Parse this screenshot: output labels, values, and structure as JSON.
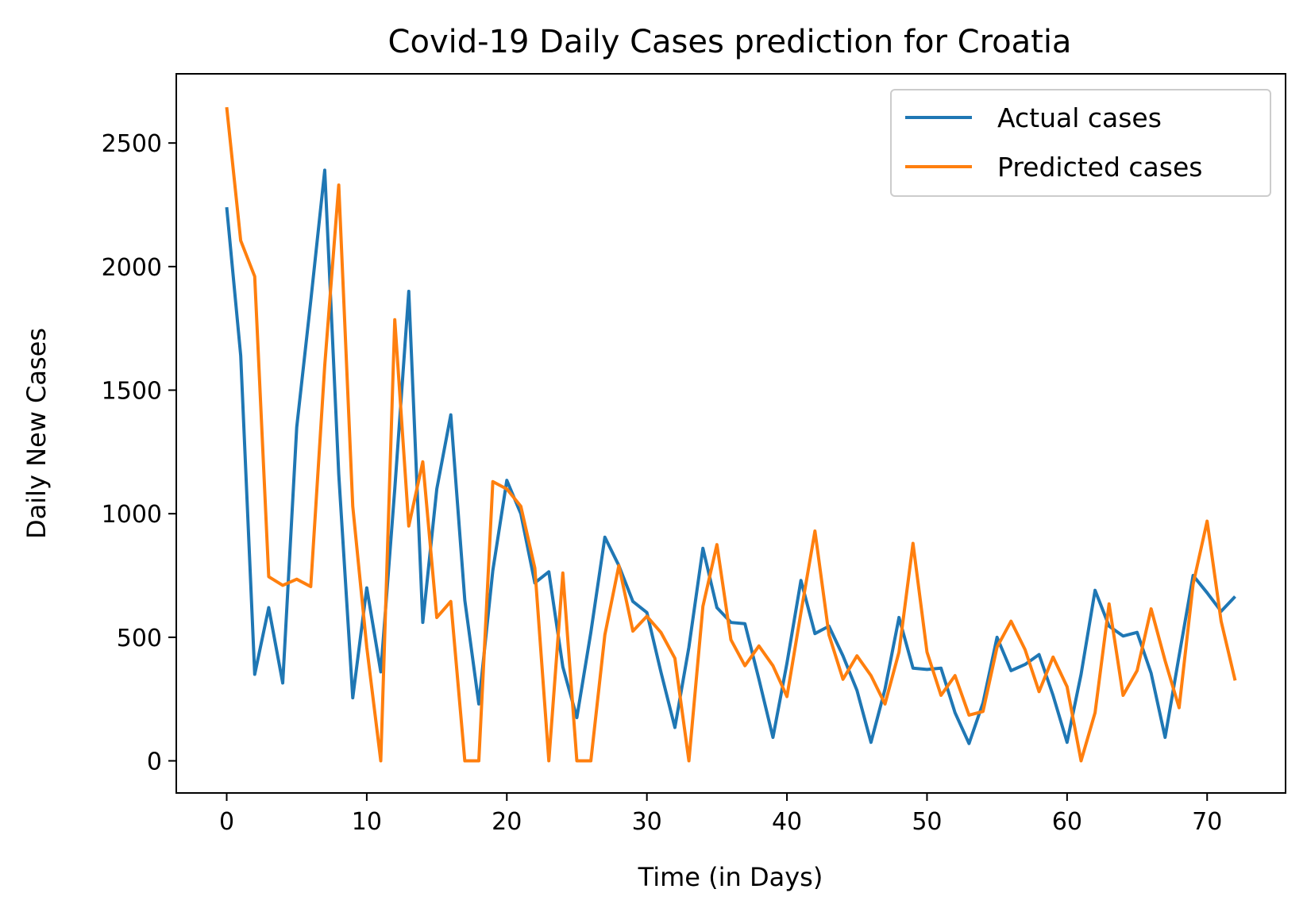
{
  "chart_data": {
    "type": "line",
    "title": "Covid-19 Daily Cases prediction for Croatia",
    "xlabel": "Time (in Days)",
    "ylabel": "Daily New Cases",
    "xlim": [
      -3.6,
      75.6
    ],
    "ylim": [
      -130,
      2780
    ],
    "xticks": [
      0,
      10,
      20,
      30,
      40,
      50,
      60,
      70
    ],
    "yticks": [
      0,
      500,
      1000,
      1500,
      2000,
      2500
    ],
    "grid": false,
    "legend_position": "top-right",
    "series": [
      {
        "name": "Actual cases",
        "color": "#1f77b4",
        "values": [
          2240,
          1640,
          350,
          620,
          315,
          1350,
          1860,
          2390,
          1160,
          255,
          700,
          360,
          1100,
          1900,
          560,
          1100,
          1400,
          650,
          230,
          770,
          1135,
          1000,
          720,
          765,
          380,
          175,
          520,
          905,
          790,
          645,
          600,
          360,
          135,
          460,
          860,
          620,
          560,
          555,
          330,
          95,
          395,
          730,
          515,
          545,
          425,
          285,
          75,
          290,
          580,
          375,
          370,
          375,
          195,
          70,
          235,
          500,
          365,
          390,
          430,
          265,
          75,
          350,
          690,
          545,
          505,
          520,
          355,
          95,
          425,
          750,
          680,
          605,
          665
        ]
      },
      {
        "name": "Predicted cases",
        "color": "#ff7f0e",
        "values": [
          2645,
          2105,
          1960,
          745,
          710,
          735,
          705,
          1600,
          2330,
          1030,
          460,
          0,
          1785,
          950,
          1210,
          580,
          645,
          0,
          0,
          1130,
          1100,
          1030,
          780,
          0,
          760,
          0,
          0,
          510,
          790,
          525,
          585,
          520,
          415,
          0,
          625,
          875,
          490,
          385,
          465,
          385,
          260,
          600,
          930,
          510,
          330,
          425,
          345,
          230,
          440,
          880,
          440,
          265,
          345,
          185,
          200,
          460,
          565,
          450,
          280,
          420,
          300,
          0,
          195,
          635,
          265,
          365,
          615,
          405,
          215,
          715,
          970,
          565,
          325
        ]
      }
    ]
  }
}
